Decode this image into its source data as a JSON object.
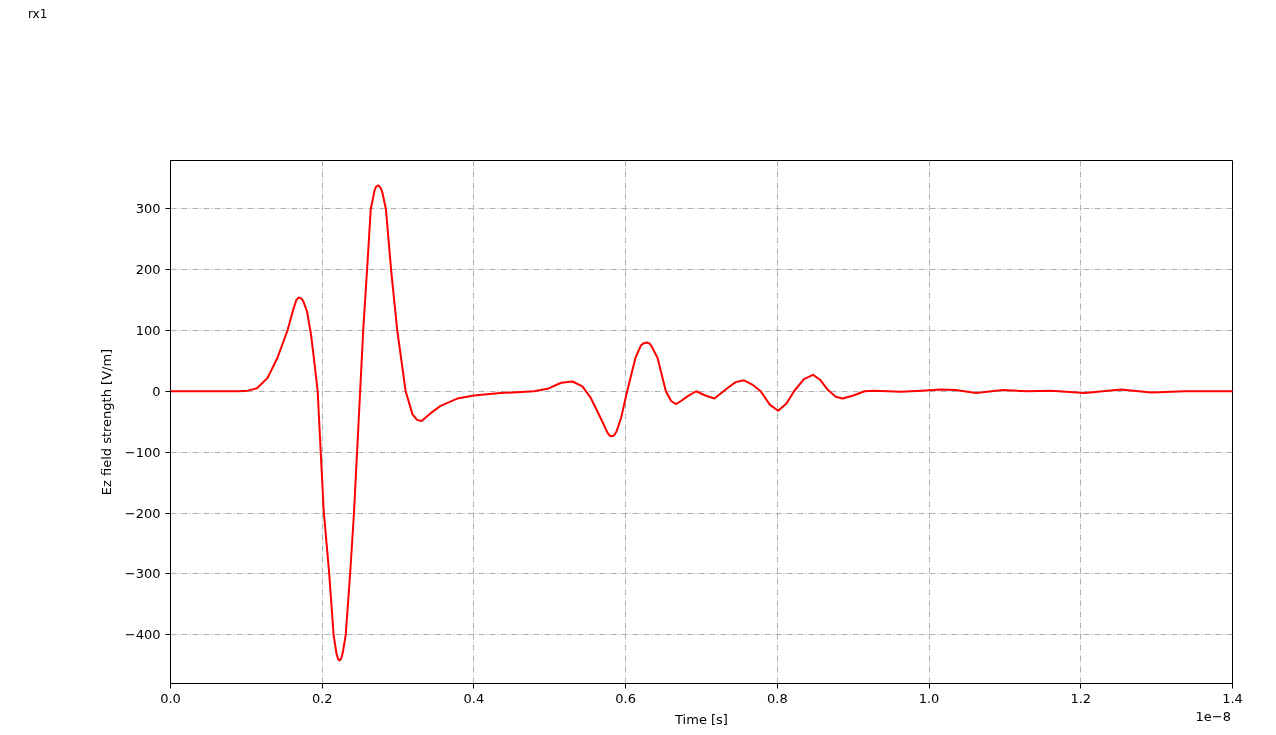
{
  "chart_data": {
    "type": "line",
    "title": "rx1",
    "xlabel": "Time [s]",
    "ylabel": "Ez field strength [V/m]",
    "annotations": [
      "1e−8"
    ],
    "x": [
      0,
      0.05,
      0.09,
      0.102,
      0.114,
      0.128,
      0.141,
      0.154,
      0.162,
      0.166,
      0.169,
      0.172,
      0.175,
      0.18,
      0.185,
      0.189,
      0.194,
      0.198,
      0.202,
      0.209,
      0.215,
      0.219,
      0.221,
      0.223,
      0.225,
      0.227,
      0.231,
      0.237,
      0.242,
      0.246,
      0.25,
      0.254,
      0.259,
      0.264,
      0.269,
      0.271,
      0.274,
      0.277,
      0.279,
      0.284,
      0.291,
      0.299,
      0.31,
      0.319,
      0.325,
      0.331,
      0.343,
      0.356,
      0.378,
      0.4,
      0.435,
      0.479,
      0.497,
      0.515,
      0.53,
      0.543,
      0.554,
      0.567,
      0.576,
      0.579,
      0.582,
      0.585,
      0.588,
      0.594,
      0.602,
      0.613,
      0.62,
      0.624,
      0.628,
      0.632,
      0.635,
      0.642,
      0.653,
      0.66,
      0.666,
      0.673,
      0.682,
      0.693,
      0.705,
      0.717,
      0.734,
      0.745,
      0.756,
      0.767,
      0.778,
      0.79,
      0.801,
      0.812,
      0.822,
      0.835,
      0.847,
      0.857,
      0.866,
      0.877,
      0.886,
      0.9,
      0.915,
      0.928,
      0.963,
      0.99,
      1.016,
      1.035,
      1.062,
      1.097,
      1.128,
      1.161,
      1.205,
      1.253,
      1.293,
      1.337,
      1.4
    ],
    "series": [
      {
        "color": "#ff0000",
        "values": [
          0,
          0,
          0,
          1,
          5,
          22,
          55,
          99,
          135,
          150,
          154,
          153,
          148,
          131,
          95,
          55,
          0,
          -99,
          -197,
          -296,
          -400,
          -432,
          -440,
          -442,
          -439,
          -430,
          -400,
          -296,
          -197,
          -99,
          0,
          99,
          197,
          299,
          330,
          336,
          338,
          334,
          328,
          299,
          197,
          99,
          0,
          -38,
          -47,
          -49,
          -36,
          -24,
          -12,
          -7,
          -3,
          0,
          4,
          14,
          16,
          8,
          -11,
          -44,
          -68,
          -73,
          -74,
          -72,
          -66,
          -44,
          0,
          55,
          75,
          79,
          80,
          78,
          72,
          55,
          0,
          -16,
          -21,
          -16,
          -8,
          0,
          -7,
          -12,
          5,
          15,
          18,
          11,
          0,
          -22,
          -32,
          -20,
          0,
          20,
          27,
          18,
          3,
          -9,
          -12,
          -7,
          0,
          1,
          -1,
          1,
          3,
          2,
          -3,
          2,
          0,
          1,
          -3,
          3,
          -2,
          0,
          0
        ]
      }
    ],
    "xlim": [
      0,
      1.4
    ],
    "xticks": [
      {
        "value": 0,
        "label": "0.0"
      },
      0.2,
      0.4,
      0.6,
      0.8,
      {
        "value": 1,
        "label": "1.0"
      },
      1.2,
      1.4
    ],
    "ylim": [
      -480,
      379
    ],
    "yticks": [
      {
        "value": -400,
        "label": "−400"
      },
      {
        "value": -300,
        "label": "−300"
      },
      {
        "value": -200,
        "label": "−200"
      },
      {
        "value": -100,
        "label": "−100"
      },
      0,
      100,
      200,
      300
    ],
    "grid": true
  }
}
